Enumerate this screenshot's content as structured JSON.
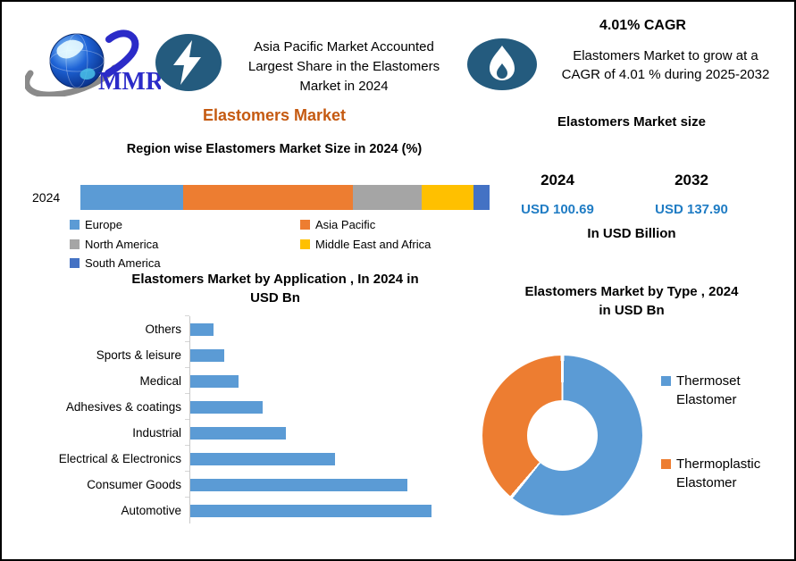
{
  "header": {
    "logo_text": "MMR",
    "asia_note_lines": [
      "Asia Pacific Market Accounted",
      "Largest Share in the Elastomers",
      "Market in 2024"
    ],
    "cagr_title": "4.01% CAGR",
    "cagr_note_lines": [
      "Elastomers Market to grow at a",
      "CAGR of 4.01 % during 2025-2032"
    ],
    "market_title": "Elastomers Market"
  },
  "size_panel": {
    "title": "Elastomers Market size",
    "columns": [
      {
        "year": "2024",
        "value": "USD 100.69"
      },
      {
        "year": "2032",
        "value": "USD 137.90"
      }
    ],
    "unit_note": "In USD Billion"
  },
  "colors": {
    "accent-orange": "#C55A11",
    "value-blue": "#1F7CC4",
    "badge-navy": "#245B7E",
    "logo-blue": "#2B2BC8"
  },
  "chart_data": [
    {
      "type": "bar",
      "subtype": "stacked-horizontal-100pct",
      "title": "Region wise Elastomers Market Size in 2024 (%)",
      "categories": [
        "2024"
      ],
      "unit": "%",
      "legend_position": "bottom-two-columns",
      "series": [
        {
          "name": "Europe",
          "color": "#5B9BD5",
          "values": [
            25
          ]
        },
        {
          "name": "Asia Pacific",
          "color": "#ED7D31",
          "values": [
            41.5
          ]
        },
        {
          "name": "North America",
          "color": "#A5A5A5",
          "values": [
            16.8
          ]
        },
        {
          "name": "Middle East and Africa",
          "color": "#FFC000",
          "values": [
            12.7
          ]
        },
        {
          "name": "South America",
          "color": "#4472C4",
          "values": [
            4
          ]
        }
      ]
    },
    {
      "type": "bar",
      "subtype": "horizontal",
      "title": "Elastomers Market by Application , In 2024 in USD Bn",
      "title_lines": [
        "Elastomers Market by Application , In 2024 in",
        "USD Bn"
      ],
      "categories": [
        "Others",
        "Sports & leisure",
        "Medical",
        "Adhesives & coatings",
        "Industrial",
        "Electrical & Electronics",
        "Consumer Goods",
        "Automotive"
      ],
      "values": [
        2.7,
        3.9,
        5.5,
        8.3,
        11.0,
        16.6,
        25.0,
        27.7
      ],
      "bar_color": "#5B9BD5",
      "xlim": [
        0,
        30
      ],
      "grid": false
    },
    {
      "type": "pie",
      "subtype": "donut",
      "title": "Elastomers Market by Type , 2024 in USD Bn",
      "title_lines": [
        "Elastomers Market by Type , 2024",
        "in USD Bn"
      ],
      "start_angle_deg": 0,
      "legend_position": "right",
      "slices": [
        {
          "label": "Thermoset Elastomer",
          "value": 61,
          "color": "#5B9BD5"
        },
        {
          "label": "Thermoplastic Elastomer",
          "value": 39,
          "color": "#ED7D31"
        }
      ]
    }
  ]
}
